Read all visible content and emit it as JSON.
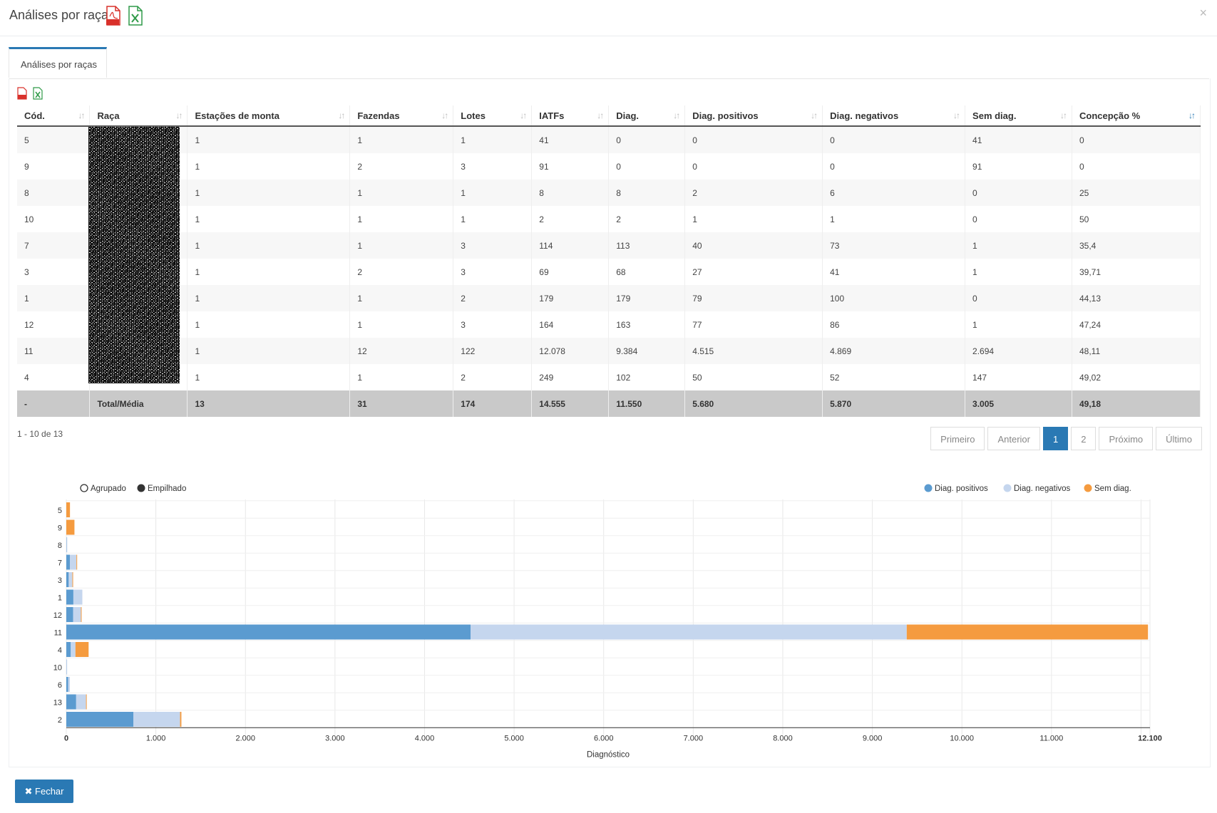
{
  "header": {
    "title": "Análises por raças",
    "close": "×"
  },
  "tabs": [
    {
      "label": "Análises por raças"
    }
  ],
  "table": {
    "columns": [
      "Cód.",
      "Raça",
      "Estações de monta",
      "Fazendas",
      "Lotes",
      "IATFs",
      "Diag.",
      "Diag. positivos",
      "Diag. negativos",
      "Sem diag.",
      "Concepção %"
    ],
    "rows": [
      [
        "5",
        "",
        "1",
        "1",
        "1",
        "41",
        "0",
        "0",
        "0",
        "41",
        "0"
      ],
      [
        "9",
        "",
        "1",
        "2",
        "3",
        "91",
        "0",
        "0",
        "0",
        "91",
        "0"
      ],
      [
        "8",
        "",
        "1",
        "1",
        "1",
        "8",
        "8",
        "2",
        "6",
        "0",
        "25"
      ],
      [
        "10",
        "",
        "1",
        "1",
        "1",
        "2",
        "2",
        "1",
        "1",
        "0",
        "50"
      ],
      [
        "7",
        "",
        "1",
        "1",
        "3",
        "114",
        "113",
        "40",
        "73",
        "1",
        "35,4"
      ],
      [
        "3",
        "",
        "1",
        "2",
        "3",
        "69",
        "68",
        "27",
        "41",
        "1",
        "39,71"
      ],
      [
        "1",
        "",
        "1",
        "1",
        "2",
        "179",
        "179",
        "79",
        "100",
        "0",
        "44,13"
      ],
      [
        "12",
        "",
        "1",
        "1",
        "3",
        "164",
        "163",
        "77",
        "86",
        "1",
        "47,24"
      ],
      [
        "11",
        "",
        "1",
        "12",
        "122",
        "12.078",
        "9.384",
        "4.515",
        "4.869",
        "2.694",
        "48,11"
      ],
      [
        "4",
        "",
        "1",
        "1",
        "2",
        "249",
        "102",
        "50",
        "52",
        "147",
        "49,02"
      ]
    ],
    "total": [
      "-",
      "Total/Média",
      "13",
      "31",
      "174",
      "14.555",
      "11.550",
      "5.680",
      "5.870",
      "3.005",
      "49,18"
    ]
  },
  "pagination": {
    "info": "1 - 10 de 13",
    "buttons": [
      "Primeiro",
      "Anterior",
      "1",
      "2",
      "Próximo",
      "Último"
    ],
    "active": "1"
  },
  "chart_data": {
    "type": "bar",
    "orientation": "horizontal",
    "stacked": true,
    "mode_options": [
      "Agrupado",
      "Empilhado"
    ],
    "mode_selected": "Empilhado",
    "categories": [
      "5",
      "9",
      "8",
      "7",
      "3",
      "1",
      "12",
      "11",
      "4",
      "10",
      "6",
      "13",
      "2"
    ],
    "series": [
      {
        "name": "Diag. positivos",
        "color": "#5b9bd0",
        "values": [
          0,
          0,
          2,
          40,
          27,
          79,
          77,
          4515,
          50,
          1,
          20,
          110,
          750
        ]
      },
      {
        "name": "Diag. negativos",
        "color": "#c5d6ee",
        "values": [
          0,
          0,
          6,
          73,
          41,
          100,
          86,
          4869,
          52,
          1,
          20,
          110,
          520
        ]
      },
      {
        "name": "Sem diag.",
        "color": "#f59b3f",
        "values": [
          41,
          91,
          0,
          1,
          1,
          0,
          1,
          2694,
          147,
          0,
          0,
          5,
          15
        ]
      }
    ],
    "xlabel": "Diagnóstico",
    "xlim": [
      0,
      12100
    ],
    "xticks": [
      "0",
      "1.000",
      "2.000",
      "3.000",
      "4.000",
      "5.000",
      "6.000",
      "7.000",
      "8.000",
      "9.000",
      "10.000",
      "11.000",
      "12.100"
    ],
    "legend_position": "top-right"
  },
  "footer": {
    "close_label": "Fechar",
    "close_icon": "✖"
  }
}
